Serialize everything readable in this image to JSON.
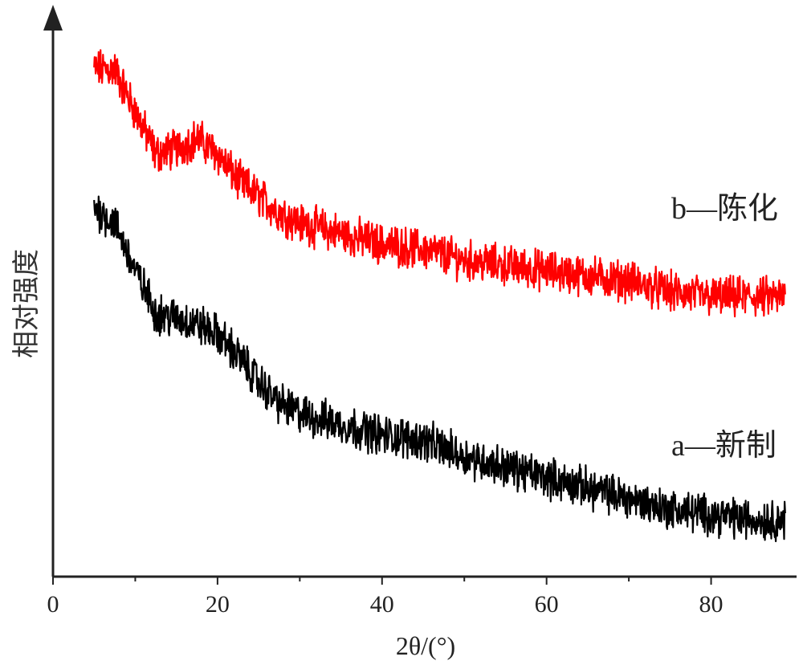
{
  "chart_data": {
    "type": "line",
    "xlabel": "2θ/(°)",
    "ylabel": "相对强度",
    "xlim": [
      0,
      90
    ],
    "x_ticks": [
      0,
      20,
      40,
      60,
      80
    ],
    "x_minor_ticks": [
      10,
      30,
      50,
      70
    ],
    "y_ticks_shown": false,
    "grid": false,
    "legend": "inline labels at right end of each curve",
    "x": [
      5,
      7.5,
      10,
      12.5,
      15,
      17.5,
      20,
      22.5,
      25,
      27.5,
      30,
      35,
      40,
      45,
      50,
      55,
      60,
      65,
      70,
      75,
      80,
      85,
      89
    ],
    "series": [
      {
        "name": "b—陈化",
        "color": "#ff0000",
        "values": [
          93,
          93,
          85,
          77,
          78,
          80,
          77,
          72,
          69,
          66,
          64,
          62,
          60,
          59,
          57,
          56,
          55,
          54,
          53,
          51,
          50,
          50,
          50
        ]
      },
      {
        "name": "a—新制",
        "color": "#000000",
        "values": [
          67,
          64,
          55,
          47,
          46,
          45,
          43,
          39,
          34,
          30,
          28,
          26,
          24,
          23,
          20,
          18,
          16,
          14,
          12,
          10,
          9,
          8,
          8
        ]
      }
    ],
    "ylim": [
      0,
      100
    ],
    "noise_amplitude": 3
  }
}
